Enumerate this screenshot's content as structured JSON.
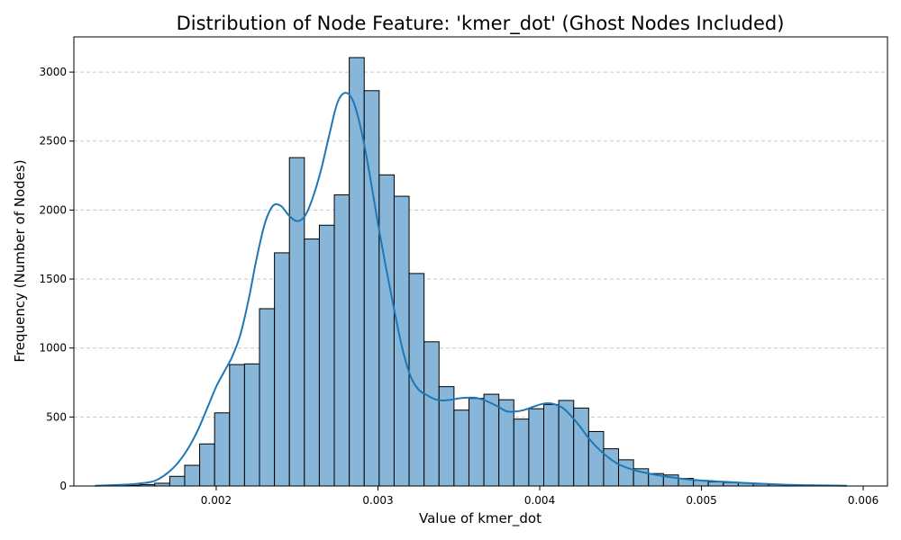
{
  "chart_data": {
    "type": "bar",
    "title": "Distribution of Node Feature: 'kmer_dot' (Ghost Nodes Included)",
    "xlabel": "Value of kmer_dot",
    "ylabel": "Frequency (Number of Nodes)",
    "xlim": [
      0.00112,
      0.00615
    ],
    "ylim": [
      0,
      3255
    ],
    "xticks": [
      0.002,
      0.003,
      0.004,
      0.005,
      0.006
    ],
    "xtick_labels": [
      "0.002",
      "0.003",
      "0.004",
      "0.005",
      "0.006"
    ],
    "yticks": [
      0,
      500,
      1000,
      1500,
      2000,
      2500,
      3000
    ],
    "ytick_labels": [
      "0",
      "500",
      "1000",
      "1500",
      "2000",
      "2500",
      "3000"
    ],
    "grid": "y-dashed",
    "bin_start": 0.00125,
    "bin_width": 9.25e-05,
    "counts": [
      0,
      2,
      5,
      10,
      20,
      70,
      150,
      305,
      530,
      880,
      885,
      1285,
      1690,
      2380,
      1790,
      1890,
      2110,
      3105,
      2865,
      2255,
      2100,
      1540,
      1045,
      720,
      550,
      635,
      665,
      625,
      485,
      560,
      590,
      620,
      565,
      395,
      270,
      190,
      125,
      90,
      80,
      55,
      40,
      30,
      25,
      22,
      15,
      10,
      8,
      5,
      3,
      2
    ],
    "kde": {
      "x": [
        0.00125,
        0.0014,
        0.0015,
        0.0016,
        0.00165,
        0.0017,
        0.00175,
        0.0018,
        0.00185,
        0.0019,
        0.00195,
        0.002,
        0.00205,
        0.0021,
        0.00215,
        0.0022,
        0.00225,
        0.0023,
        0.00235,
        0.0024,
        0.00245,
        0.0025,
        0.00255,
        0.0026,
        0.00265,
        0.0027,
        0.00275,
        0.0028,
        0.00285,
        0.0029,
        0.00295,
        0.003,
        0.00305,
        0.0031,
        0.00315,
        0.0032,
        0.00325,
        0.0033,
        0.00335,
        0.0034,
        0.00345,
        0.0035,
        0.00355,
        0.0036,
        0.00365,
        0.0037,
        0.00375,
        0.0038,
        0.00385,
        0.0039,
        0.00395,
        0.004,
        0.00405,
        0.0041,
        0.00415,
        0.0042,
        0.00425,
        0.0043,
        0.00435,
        0.0044,
        0.00445,
        0.0045,
        0.0046,
        0.0047,
        0.0048,
        0.0049,
        0.005,
        0.0051,
        0.0052,
        0.0053,
        0.0055,
        0.0057,
        0.0059
      ],
      "y": [
        2,
        8,
        15,
        30,
        55,
        95,
        150,
        225,
        320,
        440,
        580,
        720,
        830,
        940,
        1100,
        1350,
        1650,
        1900,
        2030,
        2030,
        1960,
        1920,
        1960,
        2100,
        2300,
        2550,
        2780,
        2850,
        2780,
        2560,
        2250,
        1900,
        1580,
        1280,
        1000,
        800,
        700,
        660,
        630,
        620,
        625,
        635,
        640,
        640,
        625,
        600,
        570,
        540,
        540,
        550,
        570,
        590,
        600,
        590,
        560,
        500,
        430,
        350,
        285,
        230,
        185,
        150,
        110,
        85,
        65,
        50,
        40,
        33,
        27,
        20,
        10,
        5,
        2
      ]
    },
    "bar_color": "#88b6d9",
    "bar_edge_color": "#000000",
    "line_color": "#1f77b4",
    "grid_color": "#c8c8c8"
  }
}
